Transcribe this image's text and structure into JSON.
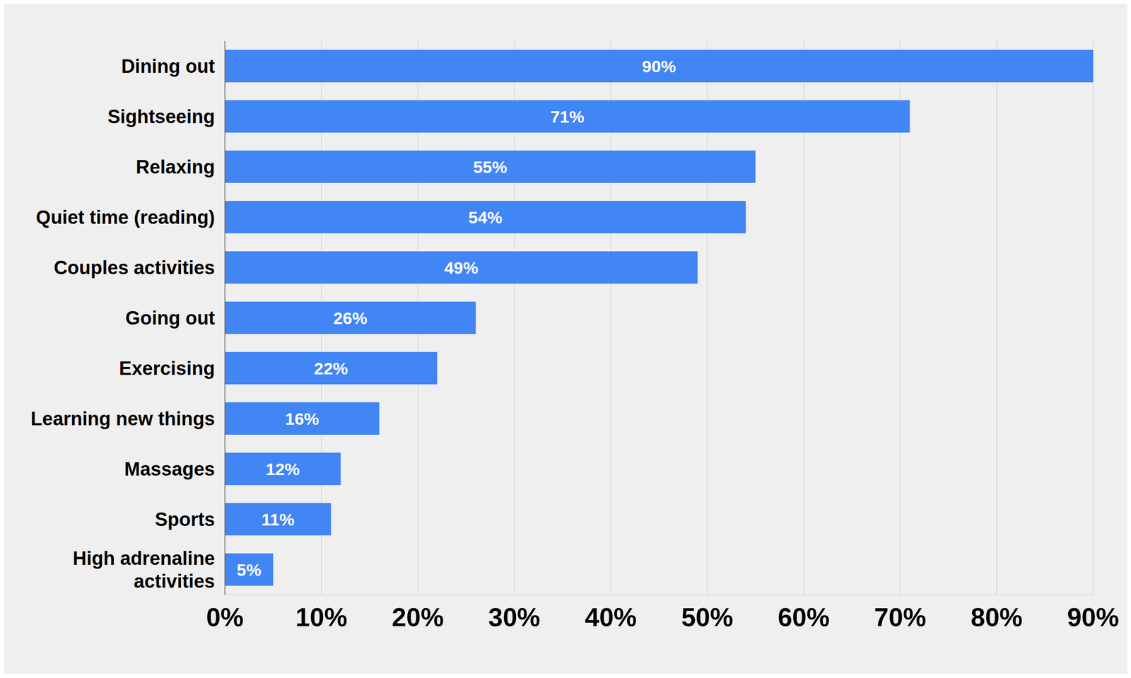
{
  "chart_data": {
    "type": "bar",
    "orientation": "horizontal",
    "categories": [
      "Dining out",
      "Sightseeing",
      "Relaxing",
      "Quiet time (reading)",
      "Couples activities",
      "Going out",
      "Exercising",
      "Learning new things",
      "Massages",
      "Sports",
      "High adrenaline activities"
    ],
    "values": [
      90,
      71,
      55,
      54,
      49,
      26,
      22,
      16,
      12,
      11,
      5
    ],
    "value_labels": [
      "90%",
      "71%",
      "55%",
      "54%",
      "49%",
      "26%",
      "22%",
      "16%",
      "12%",
      "11%",
      "5%"
    ],
    "data_labels": true,
    "color": "#4285f4",
    "xlim": [
      0,
      90
    ],
    "xticks": [
      {
        "value": 0,
        "label": "0%"
      },
      {
        "value": 10,
        "label": "10%"
      },
      {
        "value": 20,
        "label": "20%"
      },
      {
        "value": 30,
        "label": "30%"
      },
      {
        "value": 40,
        "label": "40%"
      },
      {
        "value": 50,
        "label": "50%"
      },
      {
        "value": 60,
        "label": "60%"
      },
      {
        "value": 70,
        "label": "70%"
      },
      {
        "value": 80,
        "label": "80%"
      },
      {
        "value": 90,
        "label": "90%"
      }
    ],
    "grid": true
  }
}
